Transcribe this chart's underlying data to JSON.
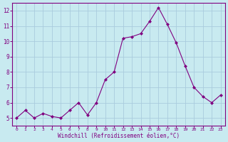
{
  "x": [
    0,
    1,
    2,
    3,
    4,
    5,
    6,
    7,
    8,
    9,
    10,
    11,
    12,
    13,
    14,
    15,
    16,
    17,
    18,
    19,
    20,
    21,
    22,
    23
  ],
  "y": [
    5.0,
    5.5,
    5.0,
    5.3,
    5.1,
    5.0,
    5.5,
    6.0,
    5.2,
    6.0,
    7.5,
    8.0,
    10.2,
    10.3,
    10.5,
    11.3,
    12.2,
    11.1,
    9.9,
    8.4,
    7.0,
    6.4,
    6.0,
    6.5
  ],
  "line_color": "#800080",
  "marker": "D",
  "marker_size": 2.0,
  "bg_color": "#c8eaf0",
  "grid_color": "#aaccdd",
  "xlabel": "Windchill (Refroidissement éolien,°C)",
  "xlabel_color": "#800080",
  "tick_color": "#800080",
  "axis_color": "#800080",
  "ylim": [
    4.5,
    12.5
  ],
  "xlim": [
    -0.5,
    23.5
  ],
  "yticks": [
    5,
    6,
    7,
    8,
    9,
    10,
    11,
    12
  ],
  "xticks": [
    0,
    1,
    2,
    3,
    4,
    5,
    6,
    7,
    8,
    9,
    10,
    11,
    12,
    13,
    14,
    15,
    16,
    17,
    18,
    19,
    20,
    21,
    22,
    23
  ]
}
